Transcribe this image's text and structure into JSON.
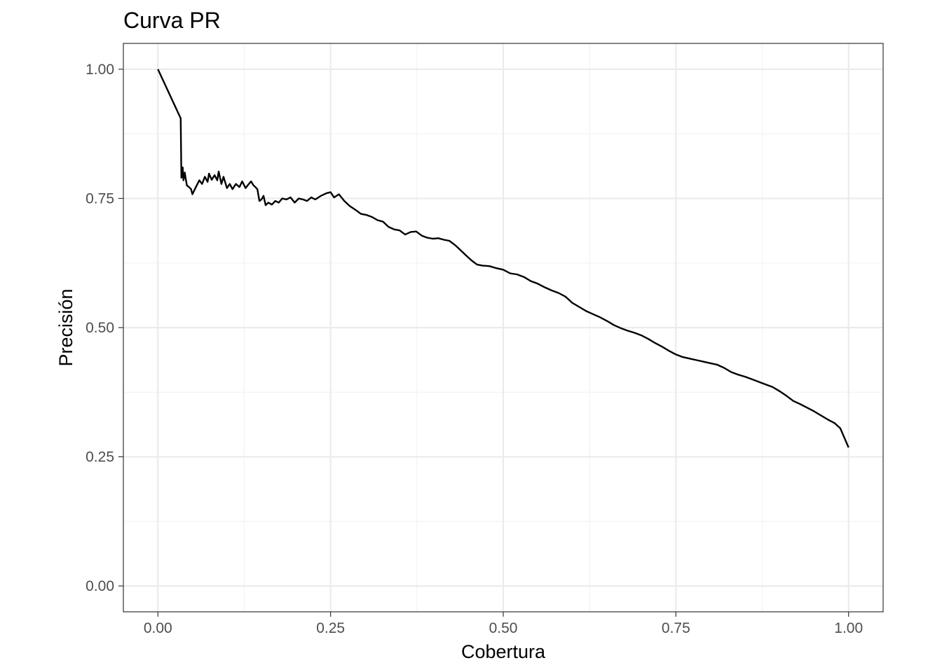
{
  "chart_data": {
    "type": "line",
    "title": "Curva PR",
    "xlabel": "Cobertura",
    "ylabel": "Precisión",
    "xlim": [
      -0.05,
      1.05
    ],
    "ylim": [
      -0.05,
      1.05
    ],
    "x_ticks": [
      0,
      0.25,
      0.5,
      0.75,
      1
    ],
    "x_tick_labels": [
      "0.00",
      "0.25",
      "0.50",
      "0.75",
      "1.00"
    ],
    "y_ticks": [
      0,
      0.25,
      0.5,
      0.75,
      1
    ],
    "y_tick_labels": [
      "0.00",
      "0.25",
      "0.50",
      "0.75",
      "1.00"
    ],
    "grid": true,
    "theme": "bw",
    "colors": {
      "line": "#000000",
      "grid_major": "#ebebeb",
      "grid_minor": "#f2f2f2",
      "panel_border": "#333333",
      "tick_text": "#4d4d4d"
    },
    "series": [
      {
        "x": [
          0.0,
          0.033,
          0.034,
          0.036,
          0.037,
          0.039,
          0.04,
          0.042,
          0.045,
          0.048,
          0.05,
          0.055,
          0.06,
          0.064,
          0.068,
          0.072,
          0.074,
          0.078,
          0.082,
          0.086,
          0.088,
          0.092,
          0.095,
          0.1,
          0.104,
          0.108,
          0.113,
          0.118,
          0.122,
          0.127,
          0.131,
          0.135,
          0.138,
          0.141,
          0.144,
          0.147,
          0.15,
          0.153,
          0.156,
          0.16,
          0.165,
          0.17,
          0.175,
          0.18,
          0.186,
          0.192,
          0.198,
          0.204,
          0.21,
          0.216,
          0.222,
          0.228,
          0.236,
          0.244,
          0.25,
          0.255,
          0.262,
          0.27,
          0.278,
          0.286,
          0.294,
          0.302,
          0.31,
          0.318,
          0.326,
          0.334,
          0.342,
          0.35,
          0.358,
          0.366,
          0.374,
          0.382,
          0.39,
          0.398,
          0.406,
          0.414,
          0.422,
          0.43,
          0.438,
          0.446,
          0.454,
          0.462,
          0.47,
          0.48,
          0.49,
          0.5,
          0.51,
          0.52,
          0.53,
          0.54,
          0.55,
          0.56,
          0.57,
          0.58,
          0.59,
          0.6,
          0.61,
          0.62,
          0.63,
          0.64,
          0.65,
          0.66,
          0.67,
          0.68,
          0.69,
          0.7,
          0.71,
          0.72,
          0.73,
          0.74,
          0.75,
          0.76,
          0.77,
          0.78,
          0.79,
          0.8,
          0.81,
          0.82,
          0.83,
          0.84,
          0.85,
          0.86,
          0.87,
          0.88,
          0.89,
          0.9,
          0.91,
          0.92,
          0.93,
          0.94,
          0.95,
          0.96,
          0.97,
          0.98,
          0.988,
          1.0
        ],
        "y": [
          1.0,
          0.905,
          0.79,
          0.81,
          0.785,
          0.8,
          0.79,
          0.775,
          0.772,
          0.768,
          0.758,
          0.772,
          0.785,
          0.778,
          0.792,
          0.782,
          0.798,
          0.786,
          0.795,
          0.785,
          0.802,
          0.778,
          0.792,
          0.77,
          0.778,
          0.768,
          0.778,
          0.772,
          0.783,
          0.77,
          0.777,
          0.783,
          0.776,
          0.772,
          0.768,
          0.745,
          0.748,
          0.755,
          0.737,
          0.742,
          0.738,
          0.745,
          0.742,
          0.75,
          0.748,
          0.752,
          0.742,
          0.75,
          0.748,
          0.745,
          0.752,
          0.748,
          0.755,
          0.76,
          0.762,
          0.752,
          0.758,
          0.745,
          0.735,
          0.728,
          0.72,
          0.718,
          0.714,
          0.708,
          0.705,
          0.695,
          0.69,
          0.688,
          0.68,
          0.685,
          0.686,
          0.678,
          0.674,
          0.672,
          0.673,
          0.67,
          0.668,
          0.66,
          0.65,
          0.64,
          0.63,
          0.622,
          0.62,
          0.619,
          0.615,
          0.612,
          0.605,
          0.603,
          0.598,
          0.59,
          0.585,
          0.578,
          0.572,
          0.567,
          0.56,
          0.548,
          0.54,
          0.532,
          0.526,
          0.52,
          0.513,
          0.505,
          0.499,
          0.494,
          0.49,
          0.485,
          0.478,
          0.47,
          0.463,
          0.455,
          0.448,
          0.443,
          0.44,
          0.437,
          0.434,
          0.431,
          0.428,
          0.422,
          0.414,
          0.409,
          0.405,
          0.4,
          0.395,
          0.39,
          0.385,
          0.377,
          0.368,
          0.358,
          0.352,
          0.345,
          0.338,
          0.33,
          0.322,
          0.315,
          0.305,
          0.268
        ]
      }
    ]
  }
}
